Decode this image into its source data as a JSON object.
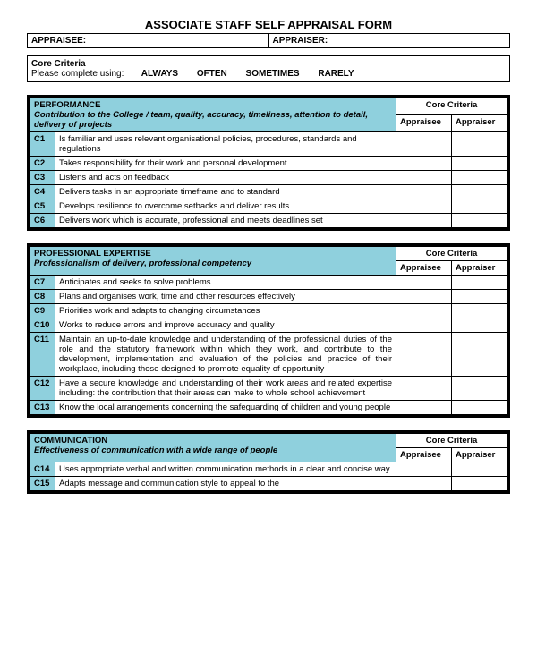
{
  "title": "ASSOCIATE STAFF SELF APPRAISAL FORM",
  "header": {
    "appraisee_label": "APPRAISEE:",
    "appraiser_label": "APPRAISER:"
  },
  "coreBox": {
    "title": "Core Criteria",
    "instruction": "Please complete using:",
    "options": [
      "ALWAYS",
      "OFTEN",
      "SOMETIMES",
      "RARELY"
    ]
  },
  "colHeaders": {
    "core": "Core Criteria",
    "a1": "Appraisee",
    "a2": "Appraiser"
  },
  "colors": {
    "accent": "#8fd0dd",
    "border": "#000000",
    "bg": "#ffffff"
  },
  "sections": [
    {
      "heading": "PERFORMANCE",
      "subheading": "Contribution to the College / team, quality, accuracy, timeliness, attention to detail, delivery of projects",
      "rows": [
        {
          "code": "C1",
          "desc": "Is familiar and uses relevant organisational policies, procedures, standards and regulations"
        },
        {
          "code": "C2",
          "desc": "Takes responsibility for their work and personal development"
        },
        {
          "code": "C3",
          "desc": "Listens and acts on feedback"
        },
        {
          "code": "C4",
          "desc": "Delivers tasks in an appropriate timeframe and to standard"
        },
        {
          "code": "C5",
          "desc": "Develops resilience to overcome setbacks and deliver results"
        },
        {
          "code": "C6",
          "desc": "Delivers work which is accurate, professional and meets deadlines set"
        }
      ]
    },
    {
      "heading": "PROFESSIONAL EXPERTISE",
      "subheading": "Professionalism of delivery, professional competency",
      "rows": [
        {
          "code": "C7",
          "desc": "Anticipates and seeks to solve problems"
        },
        {
          "code": "C8",
          "desc": "Plans and organises work, time and other resources effectively"
        },
        {
          "code": "C9",
          "desc": "Priorities work and adapts to changing circumstances"
        },
        {
          "code": "C10",
          "desc": "Works to reduce errors and improve accuracy and quality"
        },
        {
          "code": "C11",
          "desc": "Maintain an up-to-date knowledge and understanding of the professional duties of the role and the statutory framework within which they work, and contribute to the development, implementation and evaluation of the policies and practice of their workplace, including those designed to promote equality of opportunity",
          "justify": true
        },
        {
          "code": "C12",
          "desc": "Have a secure knowledge and understanding of their work areas and related expertise including: the contribution that their areas can make to whole school achievement",
          "justify": true
        },
        {
          "code": "C13",
          "desc": "Know the local arrangements concerning the safeguarding of children and young people"
        }
      ]
    },
    {
      "heading": "COMMUNICATION",
      "subheading": "Effectiveness of communication with a wide range of people",
      "rows": [
        {
          "code": "C14",
          "desc": "Uses appropriate verbal and written communication methods in a clear and concise way"
        },
        {
          "code": "C15",
          "desc": "Adapts message and communication style to appeal to the"
        }
      ]
    }
  ]
}
